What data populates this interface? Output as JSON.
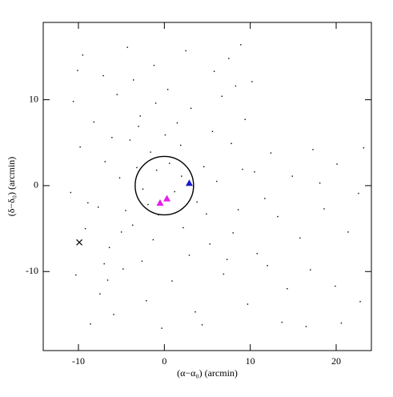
{
  "chart_data": {
    "type": "scatter",
    "x_label": "(α−α₀) (arcmin)",
    "y_label": "(δ−δ₀) (arcmin)",
    "xlim": [
      -14.1,
      24.1
    ],
    "ylim": [
      -19.2,
      19.0
    ],
    "xticks": [
      -10,
      0,
      10,
      20
    ],
    "yticks": [
      -10,
      0,
      10
    ],
    "series": [
      {
        "color": "#000000",
        "x": [
          -9.5,
          -7.1,
          -4.3,
          -1.2,
          2.5,
          5.8,
          8.9,
          10.2,
          -10.6,
          -8.2,
          -5.5,
          -2.8,
          0.4,
          3.1,
          6.7,
          9.4,
          -9.8,
          -6.9,
          -4.0,
          -1.6,
          1.9,
          4.6,
          7.8,
          10.5,
          -10.9,
          -7.7,
          -5.2,
          -2.5,
          -0.9,
          1.2,
          3.8,
          6.1,
          8.6,
          -9.2,
          -6.4,
          -3.7,
          -1.3,
          2.2,
          5.3,
          8.0,
          10.8,
          -10.3,
          -7.5,
          -4.8,
          -2.1,
          0.9,
          3.6,
          6.9,
          9.7,
          -8.6,
          -5.9,
          -0.3,
          4.4,
          12.4,
          14.9,
          17.3,
          20.1,
          22.6,
          13.2,
          15.8,
          18.6,
          21.4,
          12.0,
          14.3,
          17.0,
          19.9,
          22.8,
          13.7,
          16.5,
          20.6,
          -3.2,
          -1.9,
          0.6,
          2.0,
          -0.7,
          -4.5,
          -3.0,
          -6.1,
          1.5,
          -8.9,
          4.9,
          7.3,
          -2.6,
          -7.0,
          9.1,
          11.7,
          18.1,
          23.2,
          -10.1,
          7.5,
          -3.6,
          2.9,
          0.1,
          -5.0,
          5.6,
          -1.0,
          8.3,
          -6.6
        ],
        "y": [
          15.2,
          12.8,
          16.1,
          14.0,
          15.7,
          13.3,
          16.4,
          12.1,
          9.8,
          7.4,
          10.6,
          8.1,
          11.2,
          9.0,
          10.4,
          7.7,
          4.5,
          2.8,
          5.3,
          3.9,
          4.7,
          2.2,
          4.9,
          1.6,
          -0.8,
          -2.5,
          0.9,
          -0.4,
          1.8,
          -0.7,
          -1.9,
          0.5,
          -2.8,
          -5.0,
          -7.2,
          -4.6,
          -6.3,
          -4.9,
          -6.8,
          -5.5,
          -7.9,
          -10.4,
          -12.6,
          -9.7,
          -13.4,
          -11.1,
          -14.7,
          -10.3,
          -13.8,
          -16.1,
          -15.0,
          -16.6,
          -16.2,
          3.8,
          1.1,
          4.2,
          2.5,
          -0.9,
          -3.6,
          -6.1,
          -2.7,
          -5.4,
          -9.3,
          -12.0,
          -9.8,
          -11.7,
          -13.5,
          -15.9,
          -16.4,
          -16.0,
          2.1,
          -2.2,
          2.6,
          1.1,
          -3.4,
          -2.9,
          6.9,
          5.6,
          7.3,
          -2.0,
          -3.3,
          -8.6,
          -8.8,
          -9.1,
          1.9,
          -1.5,
          0.3,
          4.4,
          13.4,
          14.8,
          12.3,
          -8.1,
          5.9,
          -5.4,
          6.3,
          9.6,
          11.6,
          -11.0
        ]
      }
    ],
    "triangles": [
      {
        "x": 2.9,
        "y": 0.3,
        "color": "#1a1acc"
      },
      {
        "x": -0.5,
        "y": -2.0,
        "color": "#e61ee6"
      },
      {
        "x": 0.3,
        "y": -1.5,
        "color": "#e61ee6"
      }
    ],
    "cross": {
      "x": -9.9,
      "y": -6.6,
      "color": "#000000"
    },
    "circle": {
      "x": 0,
      "y": 0,
      "r": 3.4,
      "color": "#000000"
    }
  }
}
